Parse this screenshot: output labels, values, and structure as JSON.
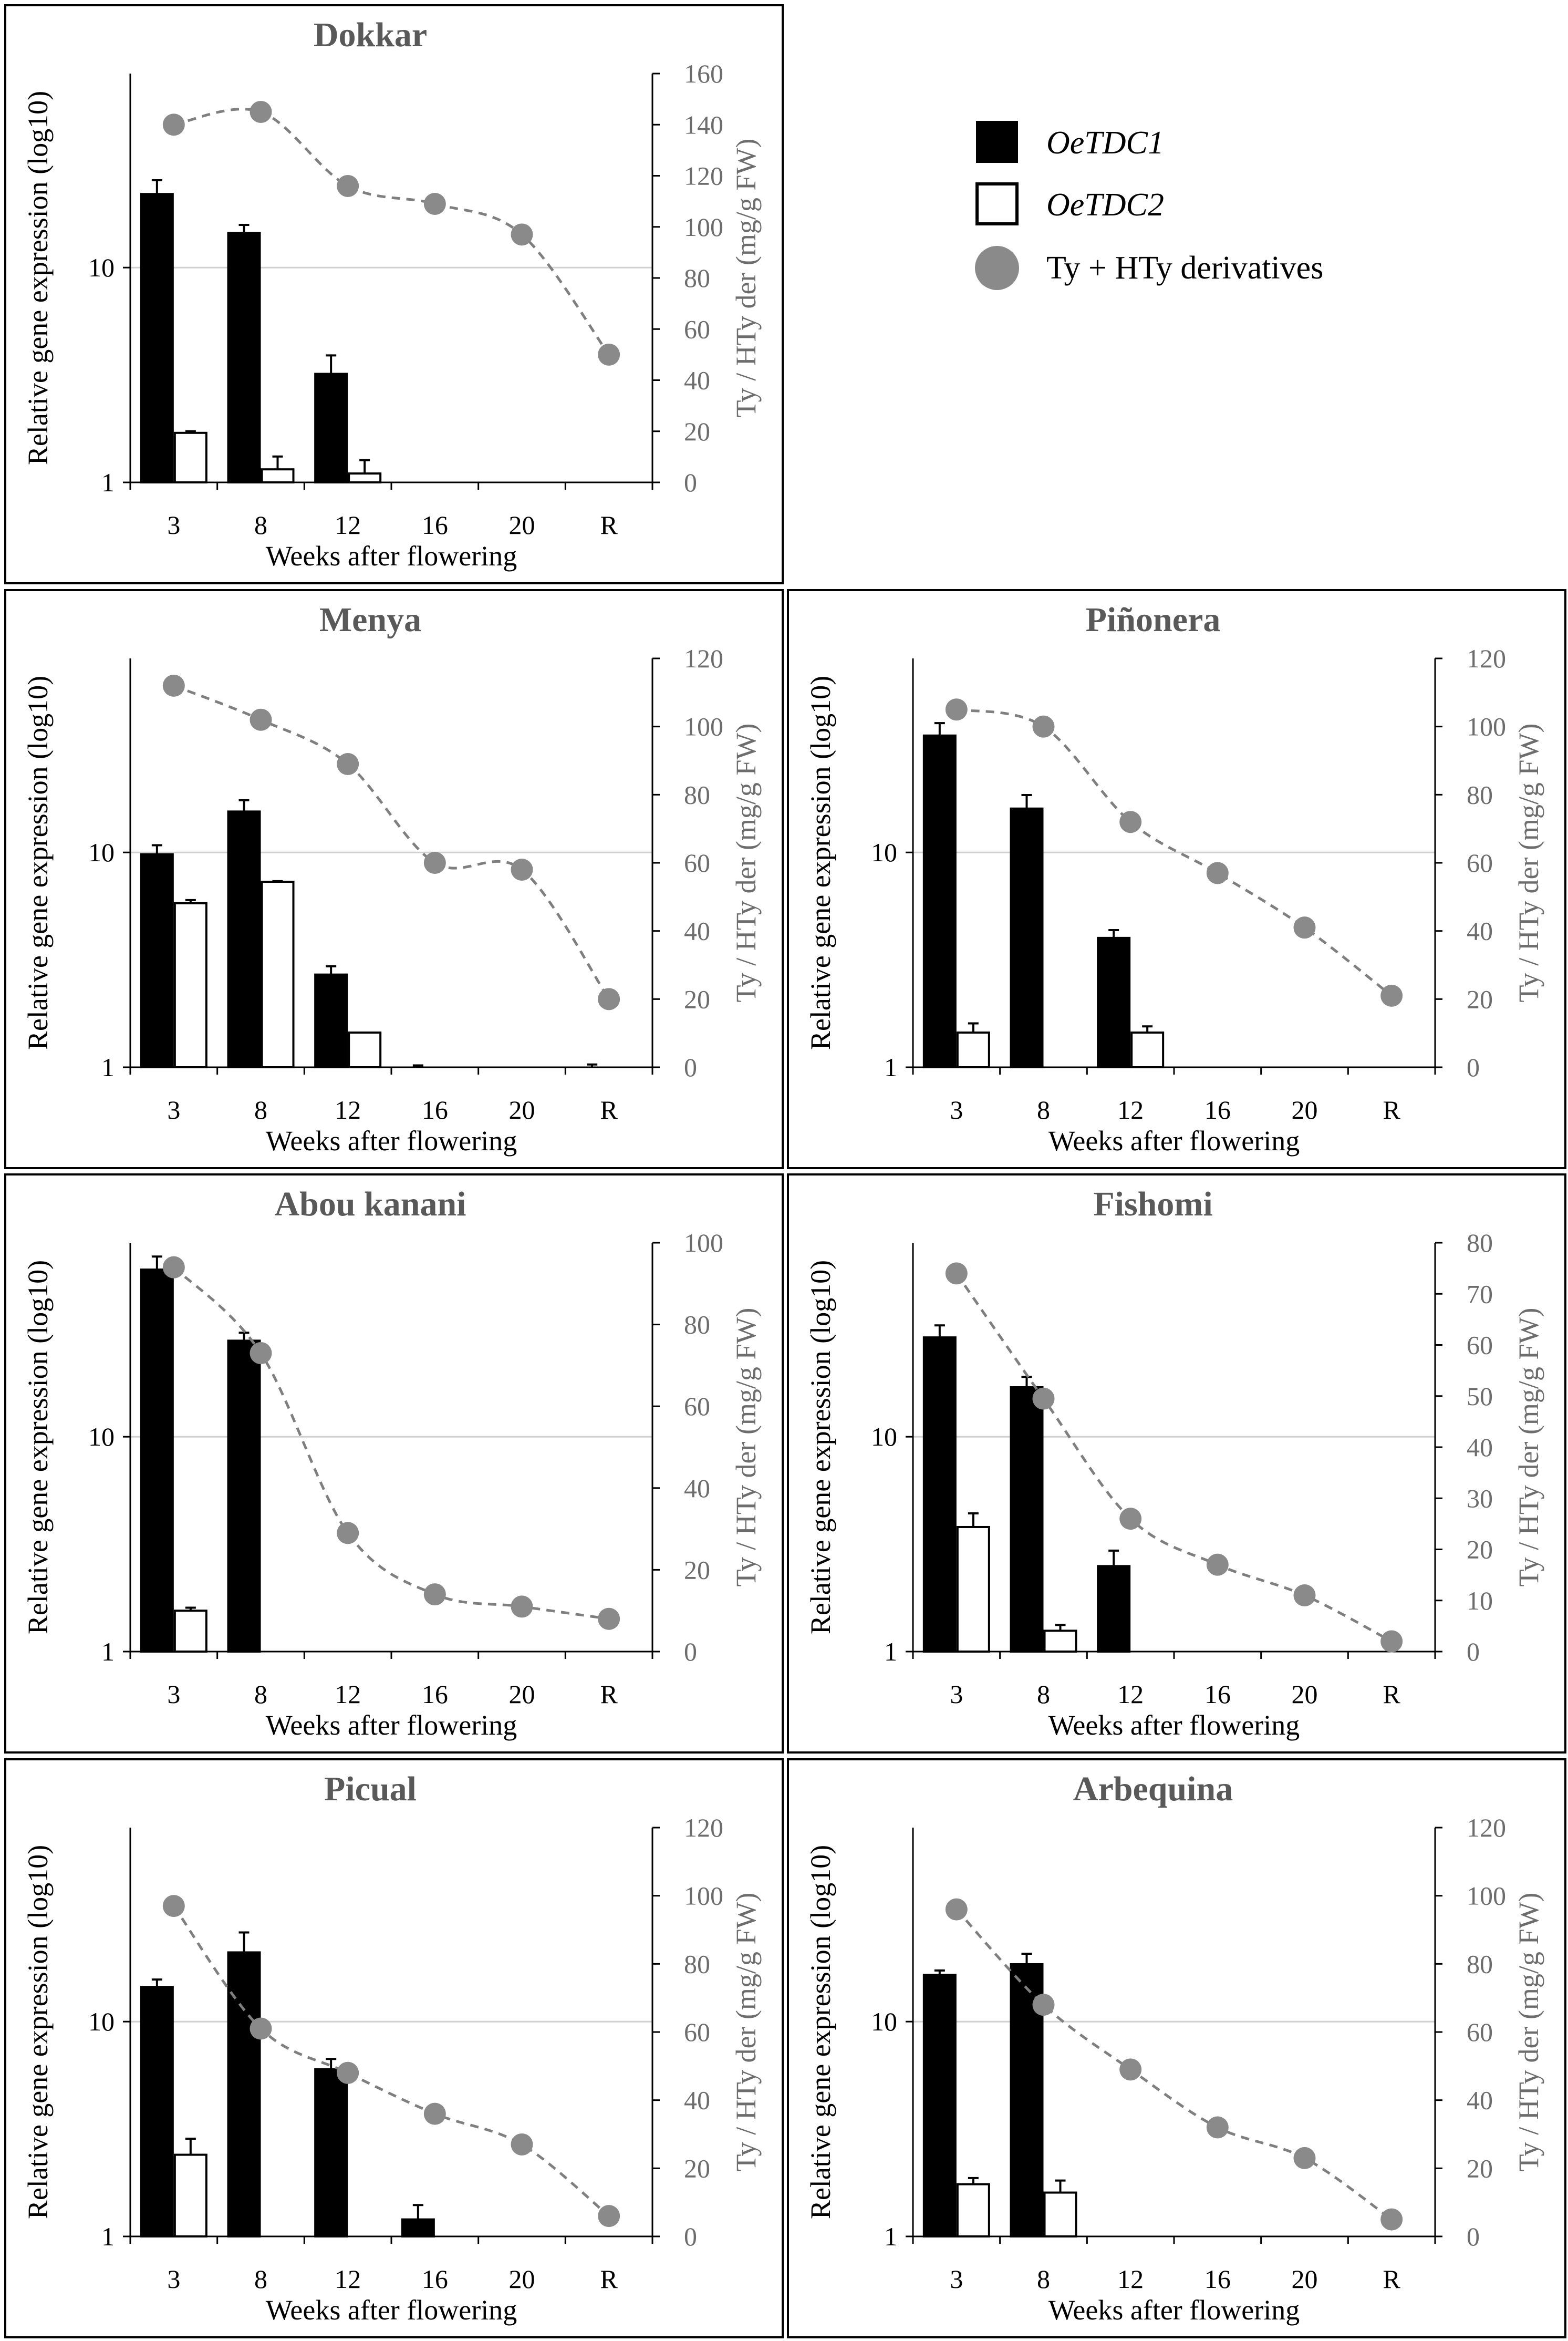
{
  "legend": {
    "items": [
      {
        "label": "OeTDC1",
        "italic": true,
        "kind": "filled-bar"
      },
      {
        "label": "OeTDC2",
        "italic": true,
        "kind": "open-bar"
      },
      {
        "label": "Ty + HTy derivatives",
        "italic": false,
        "kind": "circle"
      }
    ]
  },
  "colors": {
    "bar1": "#000000",
    "bar2": "#ffffff",
    "marker": "#8a8a8a",
    "line": "#7f7f7f",
    "grid": "#d0d0d0"
  },
  "chart_data": [
    {
      "type": "bar",
      "title": "Dokkar",
      "categories": [
        "3",
        "8",
        "12",
        "16",
        "20",
        "R"
      ],
      "xlabel": "Weeks after flowering",
      "ylabel": "Relative gene expression (log10)",
      "y2label": "Ty / HTy der (mg/g FW)",
      "yscale": "log",
      "ylim": [
        1,
        80
      ],
      "yticks": [
        1,
        10
      ],
      "y2lim": [
        0,
        160
      ],
      "y2ticks": [
        0,
        20,
        40,
        60,
        80,
        100,
        120,
        140,
        160
      ],
      "series": [
        {
          "name": "OeTDC1",
          "type": "bar",
          "values": [
            22,
            14.5,
            3.2,
            1,
            1,
            1
          ],
          "errors": [
            3.5,
            1.3,
            0.7,
            0,
            0,
            0
          ]
        },
        {
          "name": "OeTDC2",
          "type": "bar",
          "values": [
            1.7,
            1.15,
            1.1,
            1,
            1,
            1
          ],
          "errors": [
            0.03,
            0.17,
            0.17,
            0,
            0,
            0
          ]
        },
        {
          "name": "Ty + HTy derivatives",
          "type": "line",
          "axis": "right",
          "values": [
            140,
            145,
            116,
            109,
            97,
            50
          ]
        }
      ]
    },
    {
      "type": "bar",
      "title": "Menya",
      "categories": [
        "3",
        "8",
        "12",
        "16",
        "20",
        "R"
      ],
      "xlabel": "Weeks after flowering",
      "ylabel": "Relative gene expression (log10)",
      "y2label": "Ty / HTy der (mg/g FW)",
      "yscale": "log",
      "ylim": [
        1,
        80
      ],
      "yticks": [
        1,
        10
      ],
      "y2lim": [
        0,
        120
      ],
      "y2ticks": [
        0,
        20,
        40,
        60,
        80,
        100,
        120
      ],
      "series": [
        {
          "name": "OeTDC1",
          "type": "bar",
          "values": [
            9.8,
            15.5,
            2.7,
            1,
            1,
            1
          ],
          "errors": [
            1.0,
            2.0,
            0.25,
            0.02,
            0,
            0.03
          ]
        },
        {
          "name": "OeTDC2",
          "type": "bar",
          "values": [
            5.8,
            7.3,
            1.45,
            1,
            1,
            1
          ],
          "errors": [
            0.2,
            0.05,
            0,
            0,
            0,
            0
          ]
        },
        {
          "name": "Ty + HTy derivatives",
          "type": "line",
          "axis": "right",
          "values": [
            112,
            102,
            89,
            60,
            58,
            20
          ]
        }
      ]
    },
    {
      "type": "bar",
      "title": "Piñonera",
      "categories": [
        "3",
        "8",
        "12",
        "16",
        "20",
        "R"
      ],
      "xlabel": "Weeks after flowering",
      "ylabel": "Relative gene expression (log10)",
      "y2label": "Ty / HTy der (mg/g FW)",
      "yscale": "log",
      "ylim": [
        1,
        80
      ],
      "yticks": [
        1,
        10
      ],
      "y2lim": [
        0,
        120
      ],
      "y2ticks": [
        0,
        20,
        40,
        60,
        80,
        100,
        120
      ],
      "series": [
        {
          "name": "OeTDC1",
          "type": "bar",
          "values": [
            35,
            16,
            4,
            1,
            1,
            1
          ],
          "errors": [
            5,
            2.5,
            0.35,
            0,
            0,
            0
          ]
        },
        {
          "name": "OeTDC2",
          "type": "bar",
          "values": [
            1.45,
            1,
            1.45,
            1,
            1,
            1
          ],
          "errors": [
            0.15,
            0,
            0.1,
            0,
            0,
            0
          ]
        },
        {
          "name": "Ty + HTy derivatives",
          "type": "line",
          "axis": "right",
          "values": [
            105,
            100,
            72,
            57,
            41,
            21
          ]
        }
      ]
    },
    {
      "type": "bar",
      "title": "Abou kanani",
      "categories": [
        "3",
        "8",
        "12",
        "16",
        "20",
        "R"
      ],
      "xlabel": "Weeks after flowering",
      "ylabel": "Relative gene expression (log10)",
      "y2label": "Ty / HTy der (mg/g FW)",
      "yscale": "log",
      "ylim": [
        1,
        80
      ],
      "yticks": [
        1,
        10
      ],
      "y2lim": [
        0,
        100
      ],
      "y2ticks": [
        0,
        20,
        40,
        60,
        80,
        100
      ],
      "series": [
        {
          "name": "OeTDC1",
          "type": "bar",
          "values": [
            60,
            28,
            1,
            1,
            1,
            1
          ],
          "errors": [
            9,
            2.5,
            0,
            0,
            0,
            0
          ]
        },
        {
          "name": "OeTDC2",
          "type": "bar",
          "values": [
            1.55,
            1,
            1,
            1,
            1,
            1
          ],
          "errors": [
            0.05,
            0,
            0,
            0,
            0,
            0
          ]
        },
        {
          "name": "Ty + HTy derivatives",
          "type": "line",
          "axis": "right",
          "values": [
            94,
            73,
            29,
            14,
            11,
            8
          ]
        }
      ]
    },
    {
      "type": "bar",
      "title": "Fishomi",
      "categories": [
        "3",
        "8",
        "12",
        "16",
        "20",
        "R"
      ],
      "xlabel": "Weeks after flowering",
      "ylabel": "Relative gene expression (log10)",
      "y2label": "Ty / HTy der (mg/g FW)",
      "yscale": "log",
      "ylim": [
        1,
        80
      ],
      "yticks": [
        1,
        10
      ],
      "y2lim": [
        0,
        80
      ],
      "y2ticks": [
        0,
        10,
        20,
        30,
        40,
        50,
        60,
        70,
        80
      ],
      "series": [
        {
          "name": "OeTDC1",
          "type": "bar",
          "values": [
            29,
            17,
            2.5,
            1,
            1,
            1
          ],
          "errors": [
            4,
            2,
            0.45,
            0,
            0,
            0
          ]
        },
        {
          "name": "OeTDC2",
          "type": "bar",
          "values": [
            3.8,
            1.25,
            1,
            1,
            1,
            1
          ],
          "errors": [
            0.6,
            0.08,
            0,
            0,
            0,
            0
          ]
        },
        {
          "name": "Ty + HTy derivatives",
          "type": "line",
          "axis": "right",
          "values": [
            74,
            49.5,
            26,
            17,
            11,
            2
          ]
        }
      ]
    },
    {
      "type": "bar",
      "title": "Picual",
      "categories": [
        "3",
        "8",
        "12",
        "16",
        "20",
        "R"
      ],
      "xlabel": "Weeks after flowering",
      "ylabel": "Relative gene expression (log10)",
      "y2label": "Ty / HTy der (mg/g FW)",
      "yscale": "log",
      "ylim": [
        1,
        80
      ],
      "yticks": [
        1,
        10
      ],
      "y2lim": [
        0,
        120
      ],
      "y2ticks": [
        0,
        20,
        40,
        60,
        80,
        100,
        120
      ],
      "series": [
        {
          "name": "OeTDC1",
          "type": "bar",
          "values": [
            14.5,
            21,
            6,
            1.2,
            1,
            1
          ],
          "errors": [
            1.2,
            5,
            0.7,
            0.2,
            0,
            0
          ]
        },
        {
          "name": "OeTDC2",
          "type": "bar",
          "values": [
            2.4,
            1,
            1,
            1,
            1,
            1
          ],
          "errors": [
            0.45,
            0,
            0,
            0,
            0,
            0
          ]
        },
        {
          "name": "Ty + HTy derivatives",
          "type": "line",
          "axis": "right",
          "values": [
            97,
            61,
            48,
            36,
            27,
            6
          ]
        }
      ]
    },
    {
      "type": "bar",
      "title": "Arbequina",
      "categories": [
        "3",
        "8",
        "12",
        "16",
        "20",
        "R"
      ],
      "xlabel": "Weeks after flowering",
      "ylabel": "Relative gene expression (log10)",
      "y2label": "Ty / HTy der (mg/g FW)",
      "yscale": "log",
      "ylim": [
        1,
        80
      ],
      "yticks": [
        1,
        10
      ],
      "y2lim": [
        0,
        120
      ],
      "y2ticks": [
        0,
        20,
        40,
        60,
        80,
        100,
        120
      ],
      "series": [
        {
          "name": "OeTDC1",
          "type": "bar",
          "values": [
            16.5,
            18.5,
            1,
            1,
            1,
            1
          ],
          "errors": [
            0.8,
            2.2,
            0,
            0,
            0,
            0
          ]
        },
        {
          "name": "OeTDC2",
          "type": "bar",
          "values": [
            1.75,
            1.6,
            1,
            1,
            1,
            1
          ],
          "errors": [
            0.12,
            0.22,
            0,
            0,
            0,
            0
          ]
        },
        {
          "name": "Ty + HTy derivatives",
          "type": "line",
          "axis": "right",
          "values": [
            96,
            68,
            49,
            32,
            23,
            5
          ]
        }
      ]
    }
  ]
}
